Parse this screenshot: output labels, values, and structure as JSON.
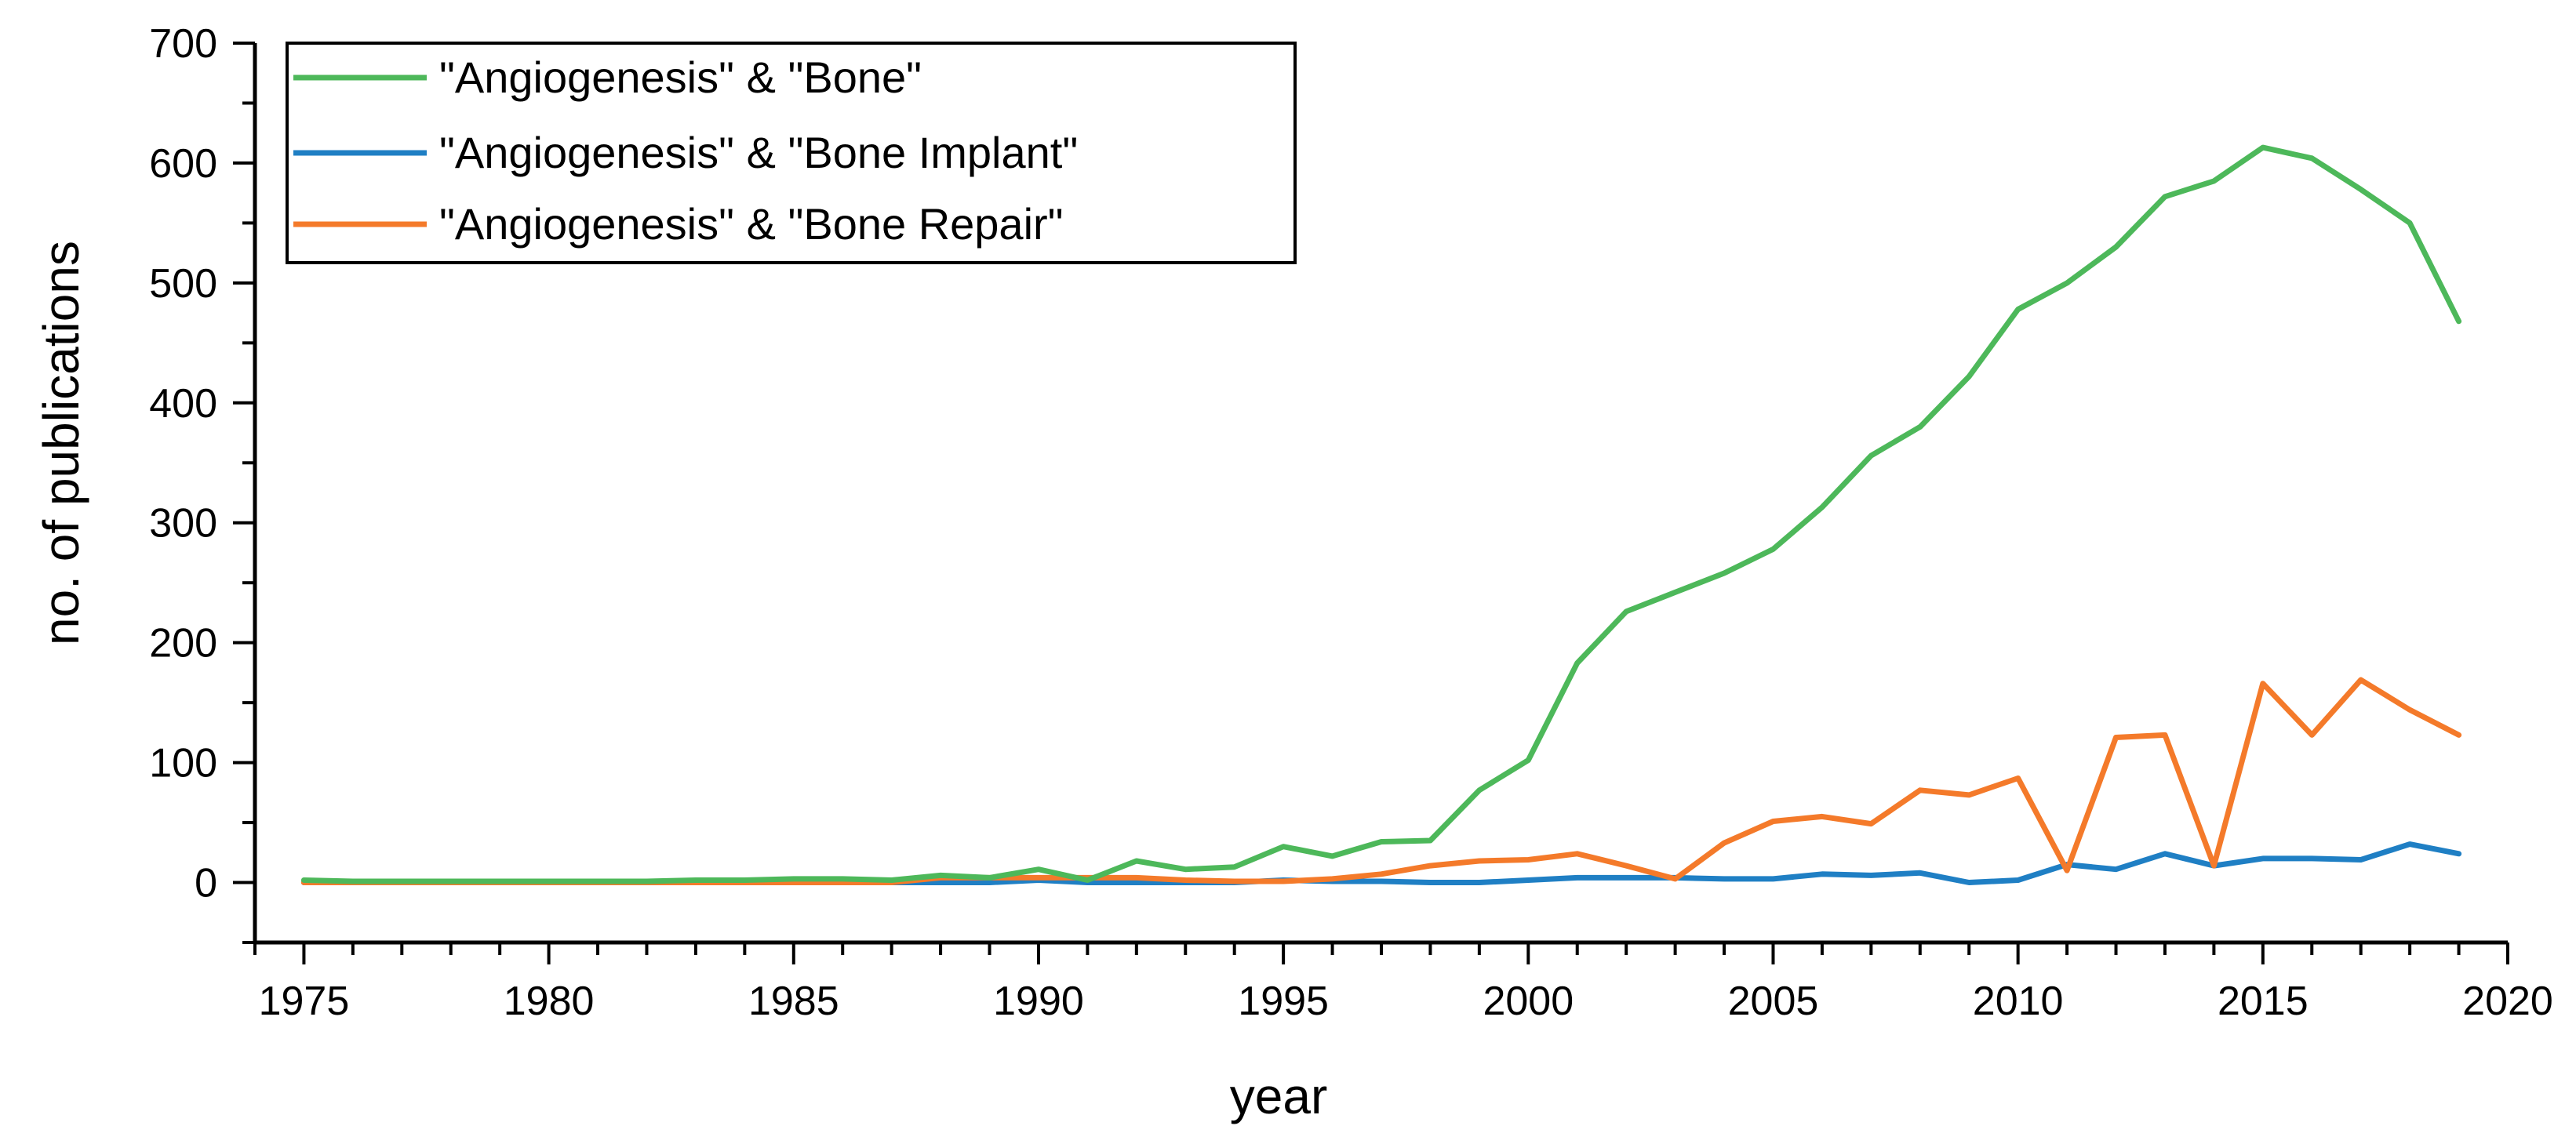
{
  "chart_data": {
    "type": "line",
    "xlabel": "year",
    "ylabel": "no. of publications",
    "xlim": [
      1974,
      2020
    ],
    "ylim": [
      -50,
      700
    ],
    "xticks": [
      1975,
      1980,
      1985,
      1990,
      1995,
      2000,
      2005,
      2010,
      2015,
      2020
    ],
    "yticks": [
      0,
      100,
      200,
      300,
      400,
      500,
      600,
      700
    ],
    "grid": false,
    "legend_position": "top-left",
    "x": [
      1975,
      1976,
      1977,
      1978,
      1979,
      1980,
      1981,
      1982,
      1983,
      1984,
      1985,
      1986,
      1987,
      1988,
      1989,
      1990,
      1991,
      1992,
      1993,
      1994,
      1995,
      1996,
      1997,
      1998,
      1999,
      2000,
      2001,
      2002,
      2003,
      2004,
      2005,
      2006,
      2007,
      2008,
      2009,
      2010,
      2011,
      2012,
      2013,
      2014,
      2015,
      2016,
      2017,
      2018,
      2019
    ],
    "series": [
      {
        "name": "\"Angiogenesis\" & \"Bone\"",
        "color": "#4db85a",
        "values": [
          2,
          1,
          1,
          1,
          1,
          1,
          1,
          1,
          2,
          2,
          3,
          3,
          2,
          6,
          4,
          11,
          2,
          18,
          11,
          13,
          30,
          22,
          34,
          35,
          77,
          102,
          183,
          226,
          242,
          258,
          278,
          313,
          356,
          380,
          422,
          478,
          500,
          530,
          572,
          585,
          613,
          604,
          578,
          550,
          468
        ]
      },
      {
        "name": "\"Angiogenesis\" & \"Bone Implant\"",
        "color": "#1f7fc4",
        "values": [
          0,
          0,
          0,
          0,
          0,
          0,
          0,
          0,
          0,
          0,
          0,
          0,
          0,
          0,
          0,
          2,
          0,
          0,
          0,
          0,
          2,
          1,
          1,
          0,
          0,
          2,
          4,
          4,
          4,
          3,
          3,
          7,
          6,
          8,
          0,
          2,
          15,
          11,
          24,
          14,
          20,
          20,
          19,
          32,
          24
        ]
      },
      {
        "name": "\"Angiogenesis\" & \"Bone Repair\"",
        "color": "#f47a2a",
        "values": [
          0,
          0,
          0,
          0,
          0,
          0,
          0,
          0,
          0,
          0,
          0,
          0,
          0,
          4,
          4,
          4,
          4,
          4,
          2,
          1,
          1,
          3,
          7,
          14,
          18,
          19,
          24,
          14,
          3,
          33,
          51,
          55,
          49,
          77,
          73,
          87,
          10,
          121,
          123,
          14,
          166,
          123,
          169,
          144,
          123
        ]
      }
    ]
  }
}
